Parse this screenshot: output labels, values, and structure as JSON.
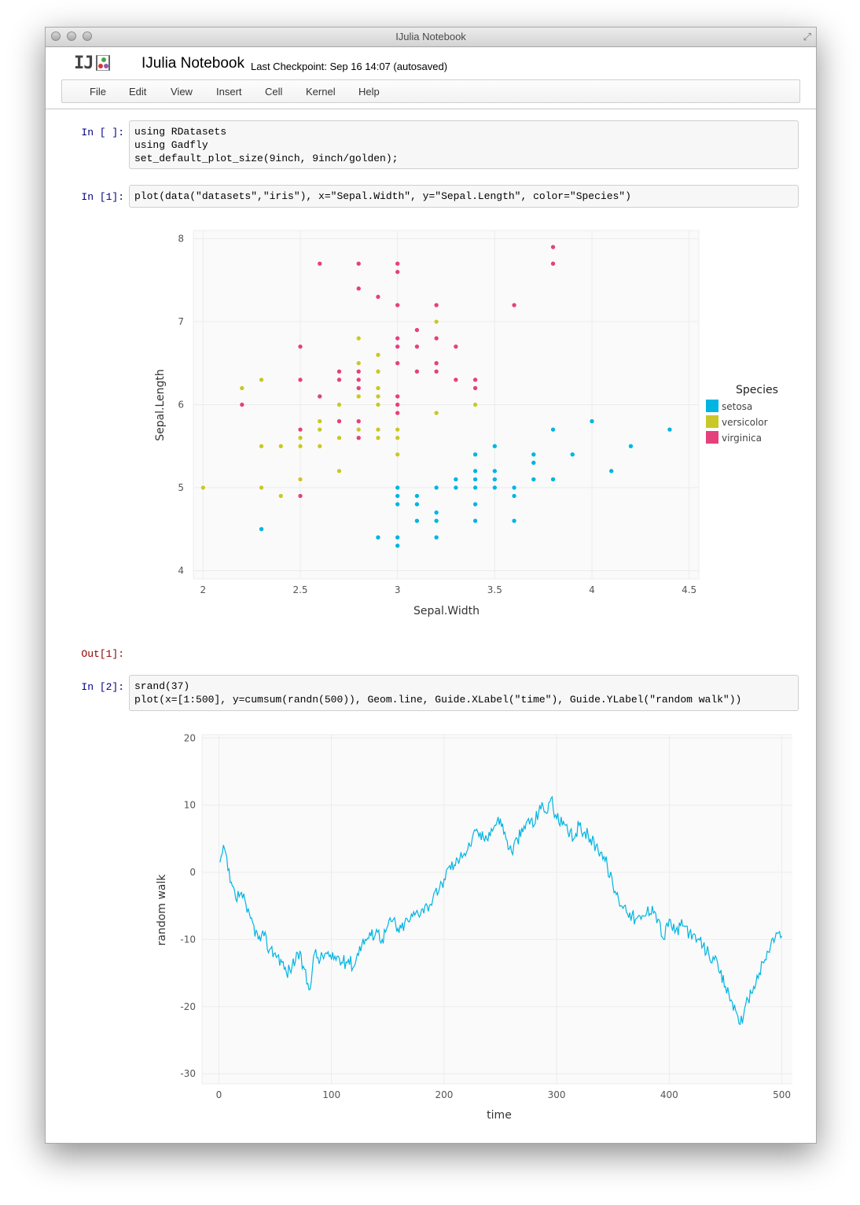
{
  "window": {
    "title": "IJulia Notebook"
  },
  "header": {
    "logo_text": "IJ",
    "notebook_title": "IJulia Notebook",
    "checkpoint": "Last Checkpoint: Sep 16 14:07 (autosaved)"
  },
  "menu": [
    "File",
    "Edit",
    "View",
    "Insert",
    "Cell",
    "Kernel",
    "Help"
  ],
  "cells": [
    {
      "prompt": "In [ ]:",
      "code": [
        "using RDatasets",
        "using Gadfly",
        "set_default_plot_size(9inch, 9inch/golden);"
      ]
    },
    {
      "prompt": "In [1]:",
      "code": [
        "plot(data(\"datasets\",\"iris\"), x=\"Sepal.Width\", y=\"Sepal.Length\", color=\"Species\")"
      ]
    },
    {
      "prompt": "Out[1]:"
    },
    {
      "prompt": "In [2]:",
      "code": [
        "srand(37)",
        "plot(x=[1:500], y=cumsum(randn(500)), Geom.line, Guide.XLabel(\"time\"), Guide.YLabel(\"random walk\"))"
      ]
    }
  ],
  "colors": {
    "setosa": "#00b5e2",
    "versicolor": "#c9c828",
    "virginica": "#e5417d",
    "line": "#00b5e2"
  },
  "chart_data": [
    {
      "type": "scatter",
      "xlabel": "Sepal.Width",
      "ylabel": "Sepal.Length",
      "xlim": [
        1.95,
        4.55
      ],
      "ylim": [
        3.9,
        8.1
      ],
      "xticks": [
        2,
        2.5,
        3,
        3.5,
        4,
        4.5
      ],
      "xtick_labels": [
        "2",
        "2.5",
        "3",
        "3.5",
        "4",
        "4.5"
      ],
      "yticks": [
        4,
        5,
        6,
        7,
        8
      ],
      "ytick_labels": [
        "4",
        "5",
        "6",
        "7",
        "8"
      ],
      "legend_title": "Species",
      "legend_position": "right",
      "series": [
        {
          "name": "setosa",
          "points": [
            [
              2.3,
              4.5
            ],
            [
              2.9,
              4.4
            ],
            [
              3.0,
              4.4
            ],
            [
              3.0,
              4.3
            ],
            [
              3.0,
              4.8
            ],
            [
              3.0,
              4.9
            ],
            [
              3.0,
              5.0
            ],
            [
              3.1,
              4.9
            ],
            [
              3.1,
              4.8
            ],
            [
              3.1,
              4.6
            ],
            [
              3.2,
              4.7
            ],
            [
              3.2,
              4.6
            ],
            [
              3.2,
              4.4
            ],
            [
              3.2,
              5.0
            ],
            [
              3.3,
              5.1
            ],
            [
              3.3,
              5.0
            ],
            [
              3.4,
              4.6
            ],
            [
              3.4,
              4.8
            ],
            [
              3.4,
              5.0
            ],
            [
              3.4,
              5.1
            ],
            [
              3.4,
              5.2
            ],
            [
              3.4,
              5.4
            ],
            [
              3.5,
              5.0
            ],
            [
              3.5,
              5.1
            ],
            [
              3.5,
              5.2
            ],
            [
              3.5,
              5.5
            ],
            [
              3.6,
              4.6
            ],
            [
              3.6,
              4.9
            ],
            [
              3.6,
              5.0
            ],
            [
              3.7,
              5.1
            ],
            [
              3.7,
              5.3
            ],
            [
              3.7,
              5.4
            ],
            [
              3.8,
              5.1
            ],
            [
              3.8,
              5.7
            ],
            [
              3.9,
              5.4
            ],
            [
              4.0,
              5.8
            ],
            [
              4.1,
              5.2
            ],
            [
              4.2,
              5.5
            ],
            [
              4.4,
              5.7
            ]
          ]
        },
        {
          "name": "versicolor",
          "points": [
            [
              2.0,
              5.0
            ],
            [
              2.2,
              6.2
            ],
            [
              2.3,
              5.5
            ],
            [
              2.3,
              5.0
            ],
            [
              2.3,
              6.3
            ],
            [
              2.4,
              5.5
            ],
            [
              2.4,
              4.9
            ],
            [
              2.5,
              5.5
            ],
            [
              2.5,
              5.6
            ],
            [
              2.5,
              5.1
            ],
            [
              2.6,
              5.5
            ],
            [
              2.6,
              5.7
            ],
            [
              2.6,
              5.8
            ],
            [
              2.7,
              5.6
            ],
            [
              2.7,
              5.8
            ],
            [
              2.7,
              6.0
            ],
            [
              2.7,
              5.2
            ],
            [
              2.8,
              5.7
            ],
            [
              2.8,
              6.1
            ],
            [
              2.8,
              6.5
            ],
            [
              2.8,
              6.8
            ],
            [
              2.9,
              5.6
            ],
            [
              2.9,
              5.7
            ],
            [
              2.9,
              6.0
            ],
            [
              2.9,
              6.1
            ],
            [
              2.9,
              6.2
            ],
            [
              2.9,
              6.4
            ],
            [
              2.9,
              6.6
            ],
            [
              3.0,
              5.4
            ],
            [
              3.0,
              5.6
            ],
            [
              3.0,
              5.7
            ],
            [
              3.0,
              5.9
            ],
            [
              3.0,
              6.7
            ],
            [
              3.1,
              6.9
            ],
            [
              3.1,
              6.7
            ],
            [
              3.2,
              5.9
            ],
            [
              3.2,
              6.4
            ],
            [
              3.2,
              7.0
            ],
            [
              3.3,
              6.3
            ],
            [
              3.4,
              6.0
            ]
          ]
        },
        {
          "name": "virginica",
          "points": [
            [
              2.2,
              6.0
            ],
            [
              2.5,
              4.9
            ],
            [
              2.5,
              5.7
            ],
            [
              2.5,
              6.3
            ],
            [
              2.5,
              6.7
            ],
            [
              2.6,
              7.7
            ],
            [
              2.6,
              6.1
            ],
            [
              2.7,
              6.3
            ],
            [
              2.7,
              6.4
            ],
            [
              2.7,
              5.8
            ],
            [
              2.8,
              5.6
            ],
            [
              2.8,
              5.8
            ],
            [
              2.8,
              6.2
            ],
            [
              2.8,
              6.3
            ],
            [
              2.8,
              6.4
            ],
            [
              2.8,
              7.4
            ],
            [
              2.8,
              7.7
            ],
            [
              2.9,
              7.3
            ],
            [
              3.0,
              6.5
            ],
            [
              3.0,
              6.7
            ],
            [
              3.0,
              7.2
            ],
            [
              3.0,
              7.6
            ],
            [
              3.0,
              7.7
            ],
            [
              3.0,
              6.1
            ],
            [
              3.0,
              6.0
            ],
            [
              3.0,
              5.9
            ],
            [
              3.0,
              6.8
            ],
            [
              3.1,
              6.4
            ],
            [
              3.1,
              6.7
            ],
            [
              3.1,
              6.9
            ],
            [
              3.2,
              6.4
            ],
            [
              3.2,
              6.5
            ],
            [
              3.2,
              6.8
            ],
            [
              3.2,
              7.2
            ],
            [
              3.3,
              6.7
            ],
            [
              3.3,
              6.3
            ],
            [
              3.4,
              6.2
            ],
            [
              3.4,
              6.3
            ],
            [
              3.6,
              7.2
            ],
            [
              3.8,
              7.7
            ],
            [
              3.8,
              7.9
            ]
          ]
        }
      ]
    },
    {
      "type": "line",
      "xlabel": "time",
      "ylabel": "random walk",
      "xlim": [
        -15,
        515
      ],
      "ylim": [
        -31.5,
        20.5
      ],
      "xticks": [
        0,
        100,
        200,
        300,
        400,
        500
      ],
      "xtick_labels": [
        "0",
        "100",
        "200",
        "300",
        "400",
        "500"
      ],
      "yticks": [
        -30,
        -20,
        -10,
        0,
        10,
        20
      ],
      "ytick_labels": [
        "-30",
        "-20",
        "-10",
        "0",
        "10",
        "20"
      ],
      "series": [
        {
          "name": "random walk",
          "x": [
            1,
            5,
            10,
            15,
            20,
            25,
            30,
            35,
            40,
            45,
            50,
            55,
            60,
            65,
            70,
            75,
            80,
            85,
            90,
            95,
            100,
            105,
            110,
            115,
            120,
            125,
            130,
            135,
            140,
            145,
            150,
            155,
            160,
            165,
            170,
            175,
            180,
            185,
            190,
            195,
            200,
            205,
            210,
            215,
            220,
            225,
            230,
            235,
            240,
            245,
            250,
            255,
            260,
            265,
            270,
            275,
            280,
            285,
            290,
            295,
            300,
            305,
            310,
            315,
            320,
            325,
            330,
            335,
            340,
            345,
            350,
            355,
            360,
            365,
            370,
            375,
            380,
            385,
            390,
            395,
            400,
            405,
            410,
            415,
            420,
            425,
            430,
            435,
            440,
            445,
            450,
            455,
            460,
            465,
            470,
            475,
            480,
            485,
            490,
            495,
            500
          ],
          "values": [
            1.5,
            3.5,
            -1.5,
            -4,
            -3,
            -6,
            -7.5,
            -10,
            -9.5,
            -11.5,
            -12,
            -13,
            -15,
            -14,
            -12,
            -14,
            -17.5,
            -12,
            -13,
            -12,
            -13,
            -12.5,
            -13.5,
            -13,
            -14,
            -11,
            -10,
            -9.5,
            -8.5,
            -10,
            -8,
            -7,
            -9,
            -7.5,
            -7,
            -6,
            -5.5,
            -5,
            -4,
            -3,
            -1,
            1,
            1,
            3,
            3,
            5,
            6,
            5,
            6,
            7,
            8,
            5,
            3,
            5,
            6,
            8,
            7,
            10,
            9,
            11,
            8,
            7,
            6,
            5,
            7,
            6,
            5,
            4,
            3,
            1,
            -2,
            -4,
            -5,
            -6,
            -7,
            -7,
            -6,
            -5,
            -7,
            -10,
            -7,
            -9,
            -8,
            -8,
            -10,
            -10,
            -11,
            -12,
            -13,
            -15,
            -17,
            -19,
            -21,
            -22.5,
            -19,
            -17,
            -15,
            -13,
            -11,
            -9,
            -9.5
          ]
        }
      ]
    }
  ]
}
